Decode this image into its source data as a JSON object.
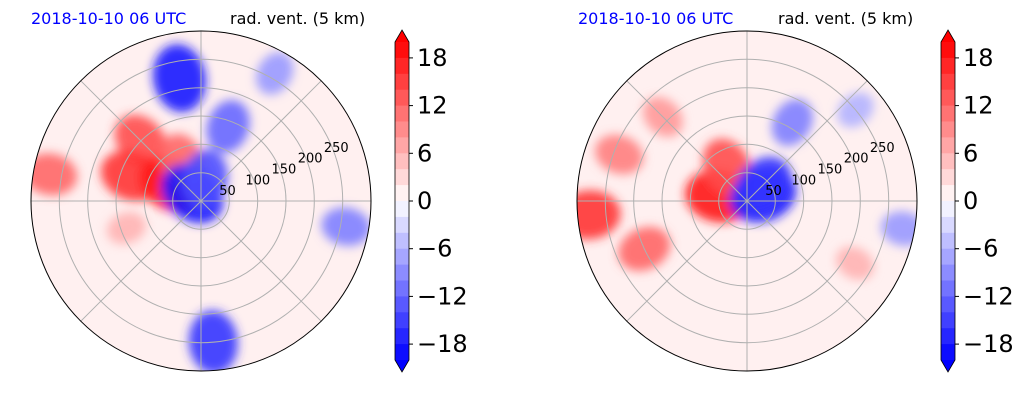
{
  "chart_data": [
    {
      "type": "heatmap",
      "projection": "polar",
      "title_left": "2018-10-10 06 UTC",
      "title_right": "rad. vent. (5 km)",
      "radial_ticks": [
        "50",
        "100",
        "150",
        "200",
        "250"
      ],
      "radial_tick_values": [
        50,
        100,
        150,
        200,
        250
      ],
      "rlim": [
        0,
        300
      ],
      "grid": true,
      "angular_grid_deg": 45,
      "colorbar": {
        "ticks": [
          "18",
          "12",
          "6",
          "0",
          "−6",
          "−12",
          "−18"
        ],
        "tick_values": [
          18,
          12,
          6,
          0,
          -6,
          -12,
          -18
        ],
        "vlim": [
          -20,
          20
        ],
        "levels": 20,
        "extend": "both",
        "cmap": "bwr"
      },
      "features": [
        {
          "theta_deg": 135,
          "r": 150,
          "value": 14
        },
        {
          "theta_deg": 160,
          "r": 130,
          "value": 16
        },
        {
          "theta_deg": 150,
          "r": 60,
          "value": 18
        },
        {
          "theta_deg": 70,
          "r": 140,
          "value": -12
        },
        {
          "theta_deg": 100,
          "r": 220,
          "value": -18
        },
        {
          "theta_deg": 60,
          "r": 260,
          "value": -8
        },
        {
          "theta_deg": 115,
          "r": 80,
          "value": 12
        },
        {
          "theta_deg": 140,
          "r": 20,
          "value": -18
        },
        {
          "theta_deg": 80,
          "r": 40,
          "value": -14
        },
        {
          "theta_deg": 170,
          "r": 270,
          "value": 12
        },
        {
          "theta_deg": 350,
          "r": 260,
          "value": -10
        },
        {
          "theta_deg": 200,
          "r": 140,
          "value": 6
        },
        {
          "theta_deg": 275,
          "r": 250,
          "value": -16
        }
      ]
    },
    {
      "type": "heatmap",
      "projection": "polar",
      "title_left": "2018-10-10 06 UTC",
      "title_right": "rad. vent. (5 km)",
      "radial_ticks": [
        "50",
        "100",
        "150",
        "200",
        "250"
      ],
      "radial_tick_values": [
        50,
        100,
        150,
        200,
        250
      ],
      "rlim": [
        0,
        300
      ],
      "grid": true,
      "angular_grid_deg": 45,
      "colorbar": {
        "ticks": [
          "18",
          "12",
          "6",
          "0",
          "−6",
          "−12",
          "−18"
        ],
        "tick_values": [
          18,
          12,
          6,
          0,
          -6,
          -12,
          -18
        ],
        "vlim": [
          -20,
          20
        ],
        "levels": 20,
        "extend": "both",
        "cmap": "bwr"
      },
      "features": [
        {
          "theta_deg": 170,
          "r": 50,
          "value": 18
        },
        {
          "theta_deg": 120,
          "r": 70,
          "value": 14
        },
        {
          "theta_deg": 20,
          "r": 30,
          "value": -18
        },
        {
          "theta_deg": 45,
          "r": 40,
          "value": -16
        },
        {
          "theta_deg": 185,
          "r": 280,
          "value": 16
        },
        {
          "theta_deg": 205,
          "r": 200,
          "value": 12
        },
        {
          "theta_deg": 135,
          "r": 210,
          "value": 8
        },
        {
          "theta_deg": 160,
          "r": 240,
          "value": 10
        },
        {
          "theta_deg": 60,
          "r": 160,
          "value": -10
        },
        {
          "theta_deg": 40,
          "r": 250,
          "value": -6
        },
        {
          "theta_deg": 330,
          "r": 220,
          "value": 6
        },
        {
          "theta_deg": 350,
          "r": 280,
          "value": -8
        }
      ]
    }
  ]
}
